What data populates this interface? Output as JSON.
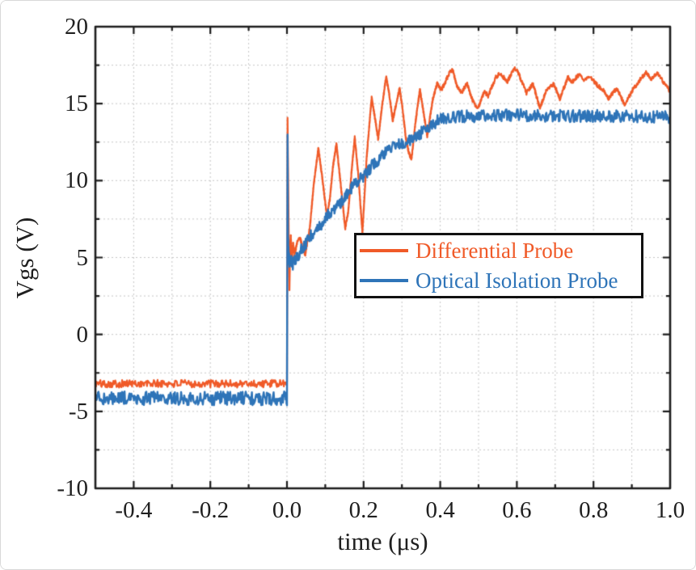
{
  "figure": {
    "background": "#ffffff",
    "frame_color": "#1c1c1c",
    "grid_color": "#c6c6c6",
    "text_color": "#1f1f1f"
  },
  "chart_data": {
    "type": "line",
    "title": "",
    "xlabel": "time (μs)",
    "ylabel": "Vgs (V)",
    "xlim": [
      -0.5,
      1.0
    ],
    "ylim": [
      -10,
      20
    ],
    "x_major_ticks": [
      -0.4,
      -0.2,
      0.0,
      0.2,
      0.4,
      0.6,
      0.8,
      1.0
    ],
    "x_tick_labels": [
      "-0.4",
      "-0.2",
      "0.0",
      "0.2",
      "0.4",
      "0.6",
      "0.8",
      "1.0"
    ],
    "x_minor_step": 0.1,
    "y_major_ticks": [
      -10,
      -5,
      0,
      5,
      10,
      15,
      20
    ],
    "y_tick_labels": [
      "-10",
      "-5",
      "0",
      "5",
      "10",
      "15",
      "20"
    ],
    "y_minor_step": 2.5,
    "grid": {
      "on": true,
      "at": "minor",
      "style": "dashed"
    },
    "legend": {
      "position": "center-right",
      "border": "black",
      "fill": "white"
    },
    "series": [
      {
        "name": "Differential Probe",
        "color": "#F05A28",
        "line_width": 2.2,
        "noise_before_t0": 0.25,
        "noise_after_t0": 0.13,
        "keypoints": [
          [
            -0.5,
            -3.2
          ],
          [
            -0.005,
            -3.2
          ],
          [
            0.0,
            -3.0
          ],
          [
            0.0015,
            14.1
          ],
          [
            0.003,
            10.5
          ],
          [
            0.005,
            5.5
          ],
          [
            0.0065,
            3.0
          ],
          [
            0.008,
            5.0
          ],
          [
            0.01,
            6.4
          ],
          [
            0.013,
            4.7
          ],
          [
            0.016,
            5.9
          ],
          [
            0.02,
            5.2
          ],
          [
            0.027,
            6.0
          ],
          [
            0.034,
            6.3
          ],
          [
            0.041,
            5.6
          ],
          [
            0.048,
            5.2
          ],
          [
            0.06,
            7.0
          ],
          [
            0.07,
            9.8
          ],
          [
            0.082,
            12.1
          ],
          [
            0.092,
            10.2
          ],
          [
            0.104,
            7.7
          ],
          [
            0.112,
            8.8
          ],
          [
            0.12,
            10.9
          ],
          [
            0.129,
            12.4
          ],
          [
            0.14,
            9.8
          ],
          [
            0.152,
            6.9
          ],
          [
            0.16,
            8.0
          ],
          [
            0.17,
            11.0
          ],
          [
            0.177,
            12.8
          ],
          [
            0.186,
            10.4
          ],
          [
            0.197,
            6.6
          ],
          [
            0.208,
            11.5
          ],
          [
            0.221,
            15.4
          ],
          [
            0.23,
            14.0
          ],
          [
            0.238,
            12.7
          ],
          [
            0.248,
            14.8
          ],
          [
            0.259,
            16.8
          ],
          [
            0.267,
            15.6
          ],
          [
            0.276,
            13.9
          ],
          [
            0.285,
            15.0
          ],
          [
            0.294,
            16.0
          ],
          [
            0.302,
            14.6
          ],
          [
            0.31,
            12.8
          ],
          [
            0.318,
            11.8
          ],
          [
            0.325,
            11.4
          ],
          [
            0.336,
            13.9
          ],
          [
            0.347,
            15.9
          ],
          [
            0.356,
            14.5
          ],
          [
            0.366,
            12.9
          ],
          [
            0.38,
            15.2
          ],
          [
            0.392,
            16.3
          ],
          [
            0.403,
            15.9
          ],
          [
            0.413,
            16.4
          ],
          [
            0.424,
            17.0
          ],
          [
            0.432,
            17.2
          ],
          [
            0.443,
            16.2
          ],
          [
            0.455,
            15.7
          ],
          [
            0.47,
            16.3
          ],
          [
            0.483,
            15.3
          ],
          [
            0.497,
            14.6
          ],
          [
            0.515,
            15.8
          ],
          [
            0.525,
            15.5
          ],
          [
            0.545,
            16.7
          ],
          [
            0.556,
            17.0
          ],
          [
            0.575,
            16.4
          ],
          [
            0.592,
            17.3
          ],
          [
            0.602,
            17.1
          ],
          [
            0.625,
            15.7
          ],
          [
            0.642,
            16.3
          ],
          [
            0.66,
            14.7
          ],
          [
            0.676,
            15.8
          ],
          [
            0.695,
            16.3
          ],
          [
            0.703,
            15.9
          ],
          [
            0.712,
            15.3
          ],
          [
            0.733,
            16.7
          ],
          [
            0.745,
            16.4
          ],
          [
            0.762,
            16.9
          ],
          [
            0.775,
            16.5
          ],
          [
            0.79,
            16.8
          ],
          [
            0.81,
            16.2
          ],
          [
            0.825,
            15.9
          ],
          [
            0.839,
            15.3
          ],
          [
            0.86,
            16.0
          ],
          [
            0.881,
            14.95
          ],
          [
            0.9,
            15.8
          ],
          [
            0.92,
            16.5
          ],
          [
            0.937,
            17.05
          ],
          [
            0.95,
            16.6
          ],
          [
            0.965,
            17.0
          ],
          [
            0.98,
            16.5
          ],
          [
            1.0,
            15.8
          ]
        ]
      },
      {
        "name": "Optical Isolation Probe",
        "color": "#2E74B8",
        "line_width": 2.4,
        "noise_before_t0": 0.45,
        "noise_after_t0": 0.4,
        "keypoints": [
          [
            -0.5,
            -4.15
          ],
          [
            -0.004,
            -4.15
          ],
          [
            0.0,
            -4.4
          ],
          [
            0.0015,
            12.8
          ],
          [
            0.0025,
            6.5
          ],
          [
            0.004,
            5.2
          ],
          [
            0.007,
            4.6
          ],
          [
            0.01,
            5.0
          ],
          [
            0.014,
            4.5
          ],
          [
            0.018,
            4.7
          ],
          [
            0.024,
            4.9
          ],
          [
            0.03,
            5.2
          ],
          [
            0.038,
            5.5
          ],
          [
            0.048,
            5.9
          ],
          [
            0.06,
            6.4
          ],
          [
            0.076,
            6.8
          ],
          [
            0.09,
            7.2
          ],
          [
            0.1,
            7.5
          ],
          [
            0.112,
            7.9
          ],
          [
            0.124,
            8.2
          ],
          [
            0.135,
            8.4
          ],
          [
            0.15,
            8.9
          ],
          [
            0.168,
            9.5
          ],
          [
            0.185,
            9.9
          ],
          [
            0.2,
            10.3
          ],
          [
            0.22,
            10.9
          ],
          [
            0.24,
            11.4
          ],
          [
            0.258,
            11.8
          ],
          [
            0.275,
            12.1
          ],
          [
            0.292,
            12.35
          ],
          [
            0.31,
            12.55
          ],
          [
            0.33,
            12.8
          ],
          [
            0.345,
            13.0
          ],
          [
            0.362,
            13.35
          ],
          [
            0.38,
            13.7
          ],
          [
            0.4,
            13.95
          ],
          [
            0.425,
            14.1
          ],
          [
            0.45,
            14.15
          ],
          [
            0.5,
            14.2
          ],
          [
            0.56,
            14.25
          ],
          [
            0.62,
            14.25
          ],
          [
            0.7,
            14.2
          ],
          [
            0.8,
            14.2
          ],
          [
            0.9,
            14.18
          ],
          [
            1.0,
            14.1
          ]
        ]
      }
    ]
  }
}
